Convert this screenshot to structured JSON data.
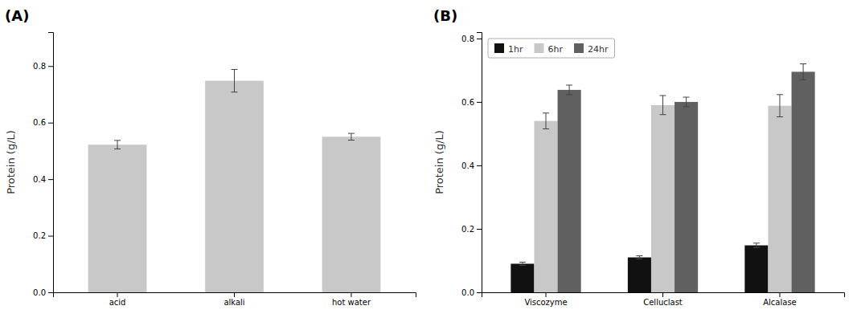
{
  "chart_data": [
    {
      "type": "bar",
      "title": "(A)",
      "categories": [
        "acid",
        "alkali",
        "hot water"
      ],
      "values": [
        0.522,
        0.748,
        0.55
      ],
      "errors": [
        0.015,
        0.04,
        0.012
      ],
      "color": "#c8c8c8",
      "ylabel": "Protein (g/L)",
      "ylim": [
        0,
        0.92
      ],
      "yticks": [
        {
          "value": 0.0,
          "label": "0.0"
        },
        0.2,
        0.4,
        0.6,
        0.8
      ]
    },
    {
      "type": "bar",
      "title": "(B)",
      "categories": [
        "Viscozyme",
        "Celluclast",
        "Alcalase"
      ],
      "series": [
        {
          "name": "1hr",
          "color": "#111111",
          "values": [
            0.09,
            0.11,
            0.148
          ],
          "errors": [
            0.005,
            0.005,
            0.007
          ]
        },
        {
          "name": "6hr",
          "color": "#c8c8c8",
          "values": [
            0.54,
            0.59,
            0.588
          ],
          "errors": [
            0.025,
            0.03,
            0.035
          ]
        },
        {
          "name": "24hr",
          "color": "#606060",
          "values": [
            0.638,
            0.6,
            0.695
          ],
          "errors": [
            0.015,
            0.015,
            0.025
          ]
        }
      ],
      "ylabel": "Protein (g/L)",
      "ylim": [
        0,
        0.82
      ],
      "yticks": [
        {
          "value": 0.0,
          "label": "0.0"
        },
        0.2,
        0.4,
        0.6,
        0.8
      ],
      "legend": "upper left"
    }
  ]
}
